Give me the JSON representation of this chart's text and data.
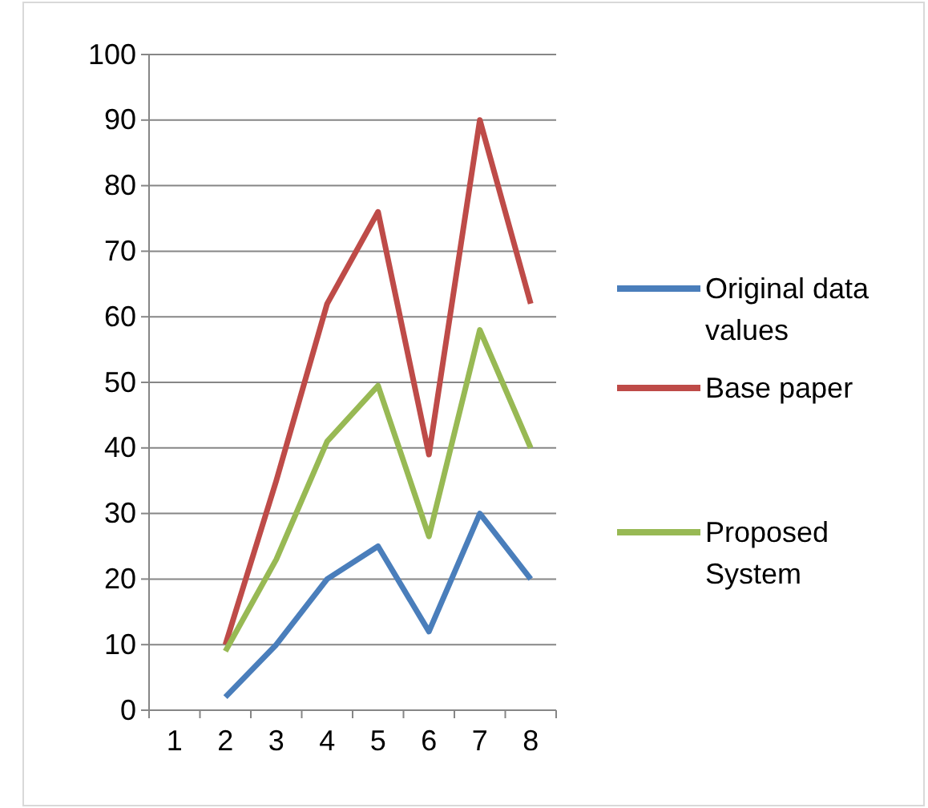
{
  "chart_data": {
    "type": "line",
    "categories": [
      "1",
      "2",
      "3",
      "4",
      "5",
      "6",
      "7",
      "8"
    ],
    "series": [
      {
        "name": "Original data values",
        "color": "#4a7ebb",
        "values": [
          null,
          2,
          10,
          20,
          25,
          12,
          30,
          20
        ]
      },
      {
        "name": "Base paper",
        "color": "#be4b48",
        "values": [
          null,
          10,
          35,
          62,
          76,
          39,
          90,
          62
        ]
      },
      {
        "name": "Proposed System",
        "color": "#98b954",
        "values": [
          null,
          9,
          23,
          41,
          49.5,
          26.5,
          58,
          40
        ]
      }
    ],
    "ylim": [
      0,
      100
    ],
    "yticks": [
      0,
      10,
      20,
      30,
      40,
      50,
      60,
      70,
      80,
      90,
      100
    ],
    "grid": "y",
    "legend": "right",
    "line_style": "solid",
    "marker": "none"
  }
}
